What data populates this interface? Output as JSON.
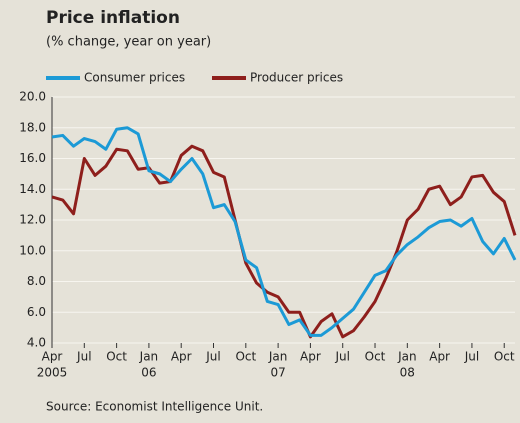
{
  "chart_data": {
    "type": "line",
    "title": "Price inflation",
    "subtitle": "(% change, year on year)",
    "source": "Source: Economist Intelligence Unit.",
    "categories": [
      "Apr",
      null,
      null,
      "Jul",
      null,
      null,
      "Oct",
      null,
      null,
      "Jan",
      null,
      null,
      "Apr",
      null,
      null,
      "Jul",
      null,
      null,
      "Oct",
      null,
      null,
      "Jan",
      null,
      null,
      "Apr",
      null,
      null,
      "Jul",
      null,
      null,
      "Oct",
      null,
      null,
      "Jan",
      null,
      null,
      "Apr",
      null,
      null,
      "Jul",
      null,
      null,
      "Oct",
      null
    ],
    "year_labels": [
      "2005",
      null,
      null,
      null,
      null,
      null,
      null,
      null,
      null,
      "06",
      null,
      null,
      null,
      null,
      null,
      null,
      null,
      null,
      null,
      null,
      null,
      "07",
      null,
      null,
      null,
      null,
      null,
      null,
      null,
      null,
      null,
      null,
      null,
      "08",
      null,
      null,
      null,
      null,
      null,
      null,
      null,
      null,
      null,
      null
    ],
    "series": [
      {
        "name": "Consumer prices",
        "color": "#1c9ad6",
        "values": [
          17.4,
          17.5,
          16.8,
          17.3,
          17.1,
          16.6,
          17.9,
          18.0,
          17.6,
          15.2,
          15.0,
          14.5,
          15.3,
          16.0,
          15.0,
          12.8,
          13.0,
          11.9,
          9.4,
          8.9,
          6.7,
          6.5,
          5.2,
          5.5,
          4.5,
          4.5,
          5.0,
          5.6,
          6.2,
          7.3,
          8.4,
          8.7,
          9.7,
          10.4,
          10.9,
          11.5,
          11.9,
          12.0,
          11.6,
          12.1,
          10.6,
          9.8,
          10.8,
          9.4
        ]
      },
      {
        "name": "Producer prices",
        "color": "#8e1f1c",
        "values": [
          13.5,
          13.3,
          12.4,
          16.0,
          14.9,
          15.5,
          16.6,
          16.5,
          15.3,
          15.4,
          14.4,
          14.5,
          16.2,
          16.8,
          16.5,
          15.1,
          14.8,
          12.0,
          9.2,
          7.9,
          7.3,
          7.0,
          6.0,
          6.0,
          4.4,
          5.4,
          5.9,
          4.4,
          4.8,
          5.7,
          6.7,
          8.2,
          9.9,
          12.0,
          12.7,
          14.0,
          14.2,
          13.0,
          13.5,
          14.8,
          14.9,
          13.8,
          13.2,
          11.0
        ]
      }
    ],
    "ylim": [
      4,
      20
    ],
    "yticks": [
      {
        "value": 4,
        "label": "4.0"
      },
      {
        "value": 6,
        "label": "6.0"
      },
      {
        "value": 8,
        "label": "8.0"
      },
      {
        "value": 10,
        "label": "10.0"
      },
      {
        "value": 12,
        "label": "12.0"
      },
      {
        "value": 14,
        "label": "14.0"
      },
      {
        "value": 16,
        "label": "16.0"
      },
      {
        "value": 18,
        "label": "18.0"
      },
      {
        "value": 20,
        "label": "20.0"
      }
    ],
    "grid": true
  }
}
